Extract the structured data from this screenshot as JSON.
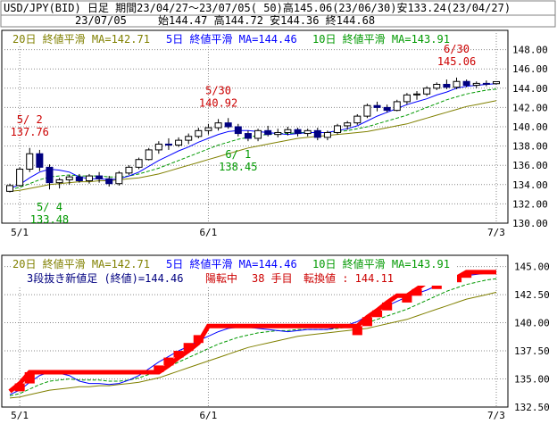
{
  "header": {
    "line1": "USD/JPY(BID) 日足 期間23/04/27～23/07/05( 50)高145.06(23/06/30)安133.24(23/04/27)",
    "date": "23/07/05",
    "ohlc": "始144.47 高144.72 安144.36 終144.68"
  },
  "legend": {
    "ma20": "20日 終値平滑 MA=142.71",
    "ma5": "5日 終値平滑 MA=144.46",
    "ma10": "10日 終値平滑 MA=143.91"
  },
  "kagi_status": {
    "main": "3段抜き新値足 (終値)=144.46",
    "mode": "陽転中",
    "count": "38 手目",
    "turn": "転換値 : 144.11"
  },
  "colors": {
    "up_candle": "#ffffff",
    "down_candle": "#000080",
    "ma20": "#808000",
    "ma5": "#0000ff",
    "ma10": "#009900",
    "label_high": "#cc0000",
    "label_low": "#009900",
    "brick_up": "#ff0000",
    "grid": "#8a8a8a"
  },
  "chart_data": [
    {
      "type": "candlestick",
      "x_ticks": [
        "5/1",
        "6/1",
        "7/3"
      ],
      "ylim": [
        130,
        150
      ],
      "y_ticks": [
        130,
        132,
        134,
        136,
        138,
        140,
        142,
        144,
        146,
        148
      ],
      "grid": true,
      "annotations": [
        {
          "date": "5/ 2",
          "value": "137.76",
          "kind": "high"
        },
        {
          "date": "5/ 4",
          "value": "133.48",
          "kind": "low"
        },
        {
          "date": "5/30",
          "value": "140.92",
          "kind": "high"
        },
        {
          "date": "6/ 1",
          "value": "138.45",
          "kind": "low"
        },
        {
          "date": "6/30",
          "value": "145.06",
          "kind": "high"
        }
      ],
      "candles": [
        [
          133.3,
          134.1,
          133.2,
          133.9
        ],
        [
          133.9,
          135.8,
          133.8,
          135.6
        ],
        [
          135.6,
          137.8,
          135.3,
          137.2
        ],
        [
          137.2,
          137.6,
          135.4,
          135.8
        ],
        [
          135.8,
          136.1,
          133.5,
          134.2
        ],
        [
          134.2,
          134.7,
          133.6,
          134.5
        ],
        [
          134.5,
          135.0,
          134.0,
          134.8
        ],
        [
          134.8,
          135.1,
          134.2,
          134.4
        ],
        [
          134.4,
          135.1,
          134.1,
          134.9
        ],
        [
          134.9,
          135.3,
          134.2,
          134.6
        ],
        [
          134.6,
          134.9,
          133.8,
          134.1
        ],
        [
          134.1,
          135.4,
          133.9,
          135.2
        ],
        [
          135.2,
          136.0,
          135.0,
          135.8
        ],
        [
          135.8,
          136.8,
          135.6,
          136.6
        ],
        [
          136.6,
          137.8,
          136.5,
          137.6
        ],
        [
          137.6,
          138.5,
          137.2,
          138.2
        ],
        [
          138.2,
          138.8,
          137.6,
          138.1
        ],
        [
          138.1,
          138.9,
          137.9,
          138.6
        ],
        [
          138.6,
          139.3,
          138.2,
          139.0
        ],
        [
          139.0,
          139.9,
          138.8,
          139.6
        ],
        [
          139.6,
          140.3,
          139.2,
          139.9
        ],
        [
          139.9,
          140.8,
          139.6,
          140.4
        ],
        [
          140.4,
          140.9,
          139.8,
          140.0
        ],
        [
          140.0,
          140.3,
          139.0,
          139.3
        ],
        [
          139.3,
          139.6,
          138.5,
          138.8
        ],
        [
          138.8,
          139.8,
          138.5,
          139.6
        ],
        [
          139.6,
          140.1,
          139.0,
          139.2
        ],
        [
          139.2,
          139.8,
          138.9,
          139.4
        ],
        [
          139.4,
          140.0,
          139.1,
          139.7
        ],
        [
          139.7,
          139.9,
          139.0,
          139.3
        ],
        [
          139.3,
          139.8,
          139.0,
          139.6
        ],
        [
          139.6,
          139.9,
          138.6,
          138.9
        ],
        [
          138.9,
          139.6,
          138.6,
          139.4
        ],
        [
          139.4,
          140.3,
          139.2,
          140.1
        ],
        [
          140.1,
          140.6,
          139.7,
          140.4
        ],
        [
          140.4,
          141.3,
          140.2,
          141.1
        ],
        [
          141.1,
          142.4,
          140.9,
          142.2
        ],
        [
          142.2,
          142.6,
          141.6,
          142.0
        ],
        [
          142.0,
          142.3,
          141.5,
          141.7
        ],
        [
          141.7,
          142.8,
          141.6,
          142.6
        ],
        [
          142.6,
          143.5,
          142.3,
          143.3
        ],
        [
          143.3,
          143.7,
          142.8,
          143.4
        ],
        [
          143.4,
          144.2,
          143.2,
          144.0
        ],
        [
          144.0,
          144.6,
          143.8,
          144.4
        ],
        [
          144.4,
          144.9,
          143.9,
          144.1
        ],
        [
          144.1,
          145.1,
          143.9,
          144.7
        ],
        [
          144.7,
          144.9,
          144.1,
          144.3
        ],
        [
          144.3,
          144.7,
          144.0,
          144.5
        ],
        [
          144.5,
          144.8,
          144.2,
          144.4
        ],
        [
          144.47,
          144.72,
          144.36,
          144.68
        ]
      ],
      "ma5": [
        133.6,
        134.0,
        134.7,
        135.3,
        135.6,
        135.5,
        135.3,
        134.8,
        134.6,
        134.6,
        134.5,
        134.6,
        134.9,
        135.3,
        135.9,
        136.5,
        137.0,
        137.5,
        137.9,
        138.4,
        138.8,
        139.2,
        139.5,
        139.6,
        139.6,
        139.5,
        139.4,
        139.3,
        139.2,
        139.3,
        139.4,
        139.4,
        139.4,
        139.6,
        139.8,
        140.1,
        140.6,
        141.1,
        141.5,
        141.9,
        142.3,
        142.6,
        142.9,
        143.3,
        143.6,
        144.0,
        144.2,
        144.3,
        144.4,
        144.46
      ],
      "ma10": [
        133.5,
        133.7,
        134.1,
        134.5,
        134.8,
        134.9,
        135.0,
        134.9,
        134.9,
        134.9,
        134.8,
        134.8,
        134.9,
        135.1,
        135.4,
        135.7,
        136.1,
        136.5,
        136.9,
        137.3,
        137.7,
        138.1,
        138.4,
        138.7,
        138.9,
        139.1,
        139.2,
        139.3,
        139.3,
        139.4,
        139.4,
        139.4,
        139.4,
        139.5,
        139.6,
        139.8,
        140.0,
        140.3,
        140.6,
        140.9,
        141.2,
        141.6,
        142.0,
        142.4,
        142.8,
        143.1,
        143.4,
        143.6,
        143.8,
        143.91
      ],
      "ma20": [
        133.3,
        133.4,
        133.6,
        133.8,
        134.0,
        134.1,
        134.2,
        134.3,
        134.3,
        134.4,
        134.4,
        134.5,
        134.6,
        134.7,
        134.9,
        135.1,
        135.4,
        135.7,
        136.0,
        136.3,
        136.6,
        136.9,
        137.2,
        137.5,
        137.8,
        138.0,
        138.2,
        138.4,
        138.6,
        138.8,
        138.9,
        139.0,
        139.1,
        139.2,
        139.3,
        139.4,
        139.5,
        139.7,
        139.9,
        140.1,
        140.3,
        140.6,
        140.9,
        141.2,
        141.5,
        141.8,
        142.1,
        142.3,
        142.5,
        142.71
      ]
    },
    {
      "type": "new-price-line",
      "basis": "3段抜き新値足 (終値)",
      "ylim": [
        132.5,
        146
      ],
      "y_ticks": [
        132.5,
        135.0,
        137.5,
        140.0,
        142.5,
        145.0
      ],
      "x_ticks": [
        "5/1",
        "6/1",
        "7/3"
      ],
      "grid": true,
      "bricks": [
        [
          133.9,
          134.6
        ],
        [
          134.6,
          135.6
        ],
        [
          135.6,
          136.2
        ],
        [
          136.2,
          136.9
        ],
        [
          136.9,
          137.5
        ],
        [
          137.5,
          138.2
        ],
        [
          138.2,
          138.9
        ],
        [
          138.9,
          139.7
        ],
        [
          139.7,
          140.5
        ],
        [
          140.5,
          141.1
        ],
        [
          141.1,
          141.8
        ],
        [
          141.8,
          142.4
        ],
        [
          142.4,
          143.0
        ],
        [
          143.0,
          143.6
        ],
        [
          143.6,
          144.0
        ],
        [
          144.0,
          144.5
        ]
      ],
      "kagi_line": [
        133.9,
        134.6,
        135.6,
        135.6,
        135.6,
        135.6,
        135.6,
        135.6,
        135.6,
        135.6,
        135.6,
        135.6,
        135.6,
        135.6,
        135.6,
        135.6,
        136.2,
        136.9,
        137.5,
        138.2,
        139.7,
        139.7,
        139.7,
        139.7,
        139.7,
        139.7,
        139.7,
        139.7,
        139.7,
        139.7,
        139.7,
        139.7,
        139.7,
        139.7,
        139.7,
        139.7,
        140.5,
        141.1,
        141.8,
        142.4,
        142.4,
        143.0,
        143.6,
        143.6,
        144.0,
        144.0,
        144.5,
        144.5,
        144.5,
        144.5
      ]
    }
  ]
}
